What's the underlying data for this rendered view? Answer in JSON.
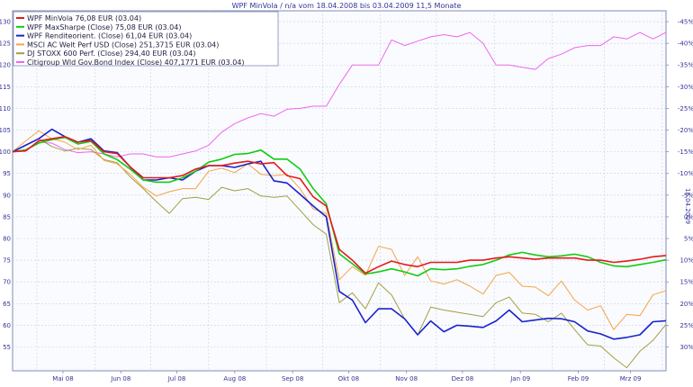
{
  "chart_data": {
    "type": "line",
    "title": "WPF MinVola / n/a vom 18.04.2008 bis 03.04.2009 11,5 Monate",
    "right_axis_title": "18.04.2009",
    "x_labels": [
      "Mai 08",
      "Jun 08",
      "Jul 08",
      "Aug 08",
      "Sep 08",
      "Okt 08",
      "Nov 08",
      "Dez 08",
      "Jan 09",
      "Feb 09",
      "Mrz 09"
    ],
    "y_left_ticks": [
      55,
      60,
      65,
      70,
      75,
      80,
      85,
      90,
      95,
      100,
      105,
      110,
      115,
      120,
      125,
      130
    ],
    "y_left_lim": [
      49.5,
      132.5
    ],
    "y_right_ticks": [
      "30%",
      "25%",
      "20%",
      "15%",
      "10%",
      "5%",
      "0%",
      "-5%",
      "-10%",
      "-15%",
      "-20%",
      "-25%",
      "-30%",
      "-35%",
      "-40%",
      "-45%"
    ],
    "grid": true,
    "legend_position": "top-left",
    "x_range": [
      "2008-04-18",
      "2009-04-03"
    ],
    "series": [
      {
        "name": "WPF MinVola 76,08 EUR (03.04)",
        "color": "#e41a1c",
        "width": 1.6,
        "dates": [
          "2008-04-18",
          "2008-04-25",
          "2008-05-02",
          "2008-05-09",
          "2008-05-16",
          "2008-05-23",
          "2008-05-30",
          "2008-06-06",
          "2008-06-13",
          "2008-06-20",
          "2008-06-27",
          "2008-07-04",
          "2008-07-11",
          "2008-07-18",
          "2008-07-25",
          "2008-08-01",
          "2008-08-08",
          "2008-08-15",
          "2008-08-22",
          "2008-08-29",
          "2008-09-05",
          "2008-09-12",
          "2008-09-19",
          "2008-09-26",
          "2008-10-03",
          "2008-10-10",
          "2008-10-17",
          "2008-10-24",
          "2008-10-31",
          "2008-11-07",
          "2008-11-14",
          "2008-11-21",
          "2008-11-28",
          "2008-12-05",
          "2008-12-12",
          "2008-12-19",
          "2008-12-26",
          "2009-01-02",
          "2009-01-09",
          "2009-01-16",
          "2009-01-23",
          "2009-01-30",
          "2009-02-06",
          "2009-02-13",
          "2009-02-20",
          "2009-02-27",
          "2009-03-06",
          "2009-03-13",
          "2009-03-20",
          "2009-03-27",
          "2009-04-03"
        ],
        "values": [
          100,
          100.2,
          102.5,
          103,
          103.5,
          102.2,
          102.6,
          100,
          99.6,
          96.5,
          94,
          94,
          94,
          94.5,
          96,
          96.8,
          96.8,
          97.4,
          97.8,
          97.2,
          97.5,
          94.5,
          93.8,
          89.6,
          87.5,
          77.5,
          75,
          72,
          73.5,
          74.8,
          74,
          73.5,
          74.5,
          74.5,
          74.5,
          75,
          75,
          75.5,
          75.8,
          75.5,
          75.2,
          75.5,
          75.5,
          75.5,
          75,
          75,
          74.5,
          74.8,
          75.2,
          75.8,
          76.08
        ]
      },
      {
        "name": "WPF MaxSharpe (Close) 75,08 EUR (03.04)",
        "color": "#11cc11",
        "width": 1.6,
        "dates": [
          "2008-04-18",
          "2008-04-25",
          "2008-05-02",
          "2008-05-09",
          "2008-05-16",
          "2008-05-23",
          "2008-05-30",
          "2008-06-06",
          "2008-06-13",
          "2008-06-20",
          "2008-06-27",
          "2008-07-04",
          "2008-07-11",
          "2008-07-18",
          "2008-07-25",
          "2008-08-01",
          "2008-08-08",
          "2008-08-15",
          "2008-08-22",
          "2008-08-29",
          "2008-09-05",
          "2008-09-12",
          "2008-09-19",
          "2008-09-26",
          "2008-10-03",
          "2008-10-10",
          "2008-10-17",
          "2008-10-24",
          "2008-10-31",
          "2008-11-07",
          "2008-11-14",
          "2008-11-21",
          "2008-11-28",
          "2008-12-05",
          "2008-12-12",
          "2008-12-19",
          "2008-12-26",
          "2009-01-02",
          "2009-01-09",
          "2009-01-16",
          "2009-01-23",
          "2009-01-30",
          "2009-02-06",
          "2009-02-13",
          "2009-02-20",
          "2009-02-27",
          "2009-03-06",
          "2009-03-13",
          "2009-03-20",
          "2009-03-27",
          "2009-04-03"
        ],
        "values": [
          100,
          100.4,
          102,
          102.8,
          103.3,
          101.8,
          102.4,
          99.5,
          98.2,
          96,
          93.5,
          93,
          93,
          94,
          95.5,
          97.6,
          98.3,
          99.4,
          99.6,
          100.4,
          98.3,
          98.3,
          96,
          91.5,
          88,
          76.5,
          74.2,
          71.8,
          72.3,
          73,
          72.3,
          71.4,
          73,
          72.8,
          73,
          73.6,
          74,
          75,
          76.2,
          76.8,
          76.2,
          75.8,
          76,
          76.4,
          75.8,
          74.5,
          73.7,
          73.5,
          74,
          74.5,
          75.08
        ]
      },
      {
        "name": "WPF Renditeorient. (Close) 61,04 EUR (03.04)",
        "color": "#1a22cc",
        "width": 1.6,
        "dates": [
          "2008-04-18",
          "2008-04-25",
          "2008-05-02",
          "2008-05-09",
          "2008-05-16",
          "2008-05-23",
          "2008-05-30",
          "2008-06-06",
          "2008-06-13",
          "2008-06-20",
          "2008-06-27",
          "2008-07-04",
          "2008-07-11",
          "2008-07-18",
          "2008-07-25",
          "2008-08-01",
          "2008-08-08",
          "2008-08-15",
          "2008-08-22",
          "2008-08-29",
          "2008-09-05",
          "2008-09-12",
          "2008-09-19",
          "2008-09-26",
          "2008-10-03",
          "2008-10-10",
          "2008-10-17",
          "2008-10-24",
          "2008-10-31",
          "2008-11-07",
          "2008-11-14",
          "2008-11-21",
          "2008-11-28",
          "2008-12-05",
          "2008-12-12",
          "2008-12-19",
          "2008-12-26",
          "2009-01-02",
          "2009-01-09",
          "2009-01-16",
          "2009-01-23",
          "2009-01-30",
          "2009-02-06",
          "2009-02-13",
          "2009-02-20",
          "2009-02-27",
          "2009-03-06",
          "2009-03-13",
          "2009-03-20",
          "2009-03-27",
          "2009-04-03"
        ],
        "values": [
          100,
          101.5,
          103,
          105.2,
          103.5,
          102.2,
          103,
          100.2,
          99.8,
          96.5,
          93.5,
          93.5,
          94,
          93.5,
          95.5,
          96.8,
          96.8,
          96.4,
          97.2,
          97.8,
          93.3,
          92.8,
          90.2,
          87.5,
          85,
          67.8,
          65.8,
          60.6,
          63.8,
          63.8,
          61.5,
          57.8,
          61,
          58.5,
          60,
          59.8,
          59.5,
          61,
          63.5,
          60.8,
          61.2,
          61.6,
          61.5,
          60.8,
          58.7,
          58,
          56.8,
          57.2,
          57.8,
          60.8,
          61.04
        ]
      },
      {
        "name": "MSCI AC Welt Perf USD (Close) 251,3715 EUR (03.04)",
        "color": "#f5a343",
        "width": 1,
        "dates": [
          "2008-04-18",
          "2008-04-25",
          "2008-05-02",
          "2008-05-09",
          "2008-05-16",
          "2008-05-23",
          "2008-05-30",
          "2008-06-06",
          "2008-06-13",
          "2008-06-20",
          "2008-06-27",
          "2008-07-04",
          "2008-07-11",
          "2008-07-18",
          "2008-07-25",
          "2008-08-01",
          "2008-08-08",
          "2008-08-15",
          "2008-08-22",
          "2008-08-29",
          "2008-09-05",
          "2008-09-12",
          "2008-09-19",
          "2008-09-26",
          "2008-10-03",
          "2008-10-10",
          "2008-10-17",
          "2008-10-24",
          "2008-10-31",
          "2008-11-07",
          "2008-11-14",
          "2008-11-21",
          "2008-11-28",
          "2008-12-05",
          "2008-12-12",
          "2008-12-19",
          "2008-12-26",
          "2009-01-02",
          "2009-01-09",
          "2009-01-16",
          "2009-01-23",
          "2009-01-30",
          "2009-02-06",
          "2009-02-13",
          "2009-02-20",
          "2009-02-27",
          "2009-03-06",
          "2009-03-13",
          "2009-03-20",
          "2009-03-27",
          "2009-04-03"
        ],
        "values": [
          100,
          102.5,
          104.8,
          103,
          102.2,
          100.5,
          101.5,
          98,
          97.2,
          94.8,
          91.8,
          89.8,
          90.8,
          91.5,
          91.5,
          95.5,
          96.2,
          95.2,
          97.2,
          94.8,
          94.5,
          94.8,
          91.5,
          86.8,
          85.8,
          70.5,
          73.5,
          71.5,
          78.2,
          77.5,
          71.5,
          75.8,
          70.2,
          69.5,
          70.5,
          69,
          67.2,
          71.5,
          72.2,
          69,
          68.8,
          66.8,
          70.2,
          65.8,
          63.5,
          64.5,
          59,
          62.5,
          62.2,
          67,
          68
        ]
      },
      {
        "name": "DJ STOXX 600 Perf. (Close) 294,40 EUR (03.04)",
        "color": "#a0a040",
        "width": 1,
        "dates": [
          "2008-04-18",
          "2008-04-25",
          "2008-05-02",
          "2008-05-09",
          "2008-05-16",
          "2008-05-23",
          "2008-05-30",
          "2008-06-06",
          "2008-06-13",
          "2008-06-20",
          "2008-06-27",
          "2008-07-04",
          "2008-07-11",
          "2008-07-18",
          "2008-07-25",
          "2008-08-01",
          "2008-08-08",
          "2008-08-15",
          "2008-08-22",
          "2008-08-29",
          "2008-09-05",
          "2008-09-12",
          "2008-09-19",
          "2008-09-26",
          "2008-10-03",
          "2008-10-10",
          "2008-10-17",
          "2008-10-24",
          "2008-10-31",
          "2008-11-07",
          "2008-11-14",
          "2008-11-21",
          "2008-11-28",
          "2008-12-05",
          "2008-12-12",
          "2008-12-19",
          "2008-12-26",
          "2009-01-02",
          "2009-01-09",
          "2009-01-16",
          "2009-01-23",
          "2009-01-30",
          "2009-02-06",
          "2009-02-13",
          "2009-02-20",
          "2009-02-27",
          "2009-03-06",
          "2009-03-13",
          "2009-03-20",
          "2009-03-27",
          "2009-04-03"
        ],
        "values": [
          100,
          101.5,
          103,
          101.2,
          100.2,
          100.8,
          100.5,
          98.2,
          97.5,
          94.2,
          91.5,
          88.5,
          85.8,
          89.2,
          89.5,
          89,
          91.8,
          91,
          91.5,
          89.8,
          89.5,
          89.8,
          86.5,
          83.2,
          81,
          65.2,
          67.5,
          63.8,
          69.8,
          67,
          61.5,
          57.8,
          64.2,
          63.5,
          63,
          62.5,
          62,
          65.2,
          66.5,
          62.8,
          62.5,
          60.8,
          62.8,
          59,
          55.5,
          55.2,
          52.5,
          50.2,
          54,
          56.5,
          60.2
        ]
      },
      {
        "name": "Citigroup Wld Gov.Bond Index (Close) 407,1771 EUR (03.04)",
        "color": "#ee66ee",
        "width": 1,
        "dates": [
          "2008-04-18",
          "2008-04-25",
          "2008-05-02",
          "2008-05-09",
          "2008-05-16",
          "2008-05-23",
          "2008-05-30",
          "2008-06-06",
          "2008-06-13",
          "2008-06-20",
          "2008-06-27",
          "2008-07-04",
          "2008-07-11",
          "2008-07-18",
          "2008-07-25",
          "2008-08-01",
          "2008-08-08",
          "2008-08-15",
          "2008-08-22",
          "2008-08-29",
          "2008-09-05",
          "2008-09-12",
          "2008-09-19",
          "2008-09-26",
          "2008-10-03",
          "2008-10-10",
          "2008-10-17",
          "2008-10-24",
          "2008-10-31",
          "2008-11-07",
          "2008-11-14",
          "2008-11-21",
          "2008-11-28",
          "2008-12-05",
          "2008-12-12",
          "2008-12-19",
          "2008-12-26",
          "2009-01-02",
          "2009-01-09",
          "2009-01-16",
          "2009-01-23",
          "2009-01-30",
          "2009-02-06",
          "2009-02-13",
          "2009-02-20",
          "2009-02-27",
          "2009-03-06",
          "2009-03-13",
          "2009-03-20",
          "2009-03-27",
          "2009-04-03"
        ],
        "values": [
          100,
          100.5,
          102.2,
          102,
          100.5,
          99.8,
          100,
          99.5,
          98.8,
          99.5,
          99.5,
          98.8,
          98.8,
          99.5,
          100.2,
          101.5,
          104.5,
          106.5,
          107.8,
          108.8,
          108.2,
          109.8,
          110,
          110.5,
          110.5,
          115.5,
          120,
          120,
          120,
          125.8,
          124.5,
          125.5,
          126.5,
          127,
          126.5,
          127.5,
          125,
          120,
          120,
          119.5,
          119,
          121.5,
          122.5,
          124,
          124.5,
          124.5,
          126.5,
          126,
          127.5,
          126,
          127.5
        ]
      }
    ]
  }
}
